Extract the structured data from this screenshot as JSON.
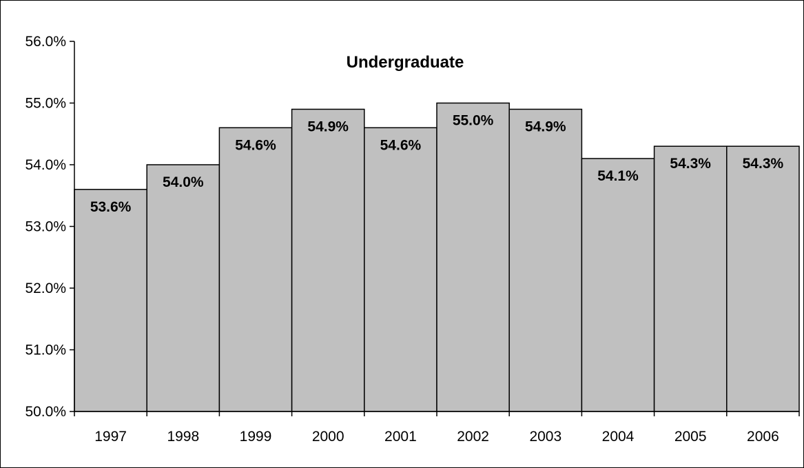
{
  "chart_data": {
    "type": "bar",
    "title": "Undergraduate",
    "xlabel": "",
    "ylabel": "",
    "categories": [
      "1997",
      "1998",
      "1999",
      "2000",
      "2001",
      "2002",
      "2003",
      "2004",
      "2005",
      "2006"
    ],
    "values": [
      53.6,
      54.0,
      54.6,
      54.9,
      54.6,
      55.0,
      54.9,
      54.1,
      54.3,
      54.3
    ],
    "data_labels": [
      "53.6%",
      "54.0%",
      "54.6%",
      "54.9%",
      "54.6%",
      "55.0%",
      "54.9%",
      "54.1%",
      "54.3%",
      "54.3%"
    ],
    "ylim": [
      50.0,
      56.0
    ],
    "yticks": [
      50.0,
      51.0,
      52.0,
      53.0,
      54.0,
      55.0,
      56.0
    ],
    "ytick_labels": [
      "50.0%",
      "51.0%",
      "52.0%",
      "53.0%",
      "54.0%",
      "55.0%",
      "56.0%"
    ],
    "grid": false,
    "legend": "none",
    "bar_color": "#c0c0c0",
    "bar_edge_color": "#000000"
  }
}
